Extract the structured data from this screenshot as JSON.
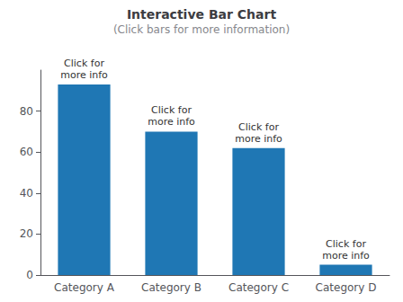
{
  "chart_data": {
    "type": "bar",
    "title": "Interactive Bar Chart",
    "subtitle": "(Click bars for more information)",
    "categories": [
      "Category A",
      "Category B",
      "Category C",
      "Category D"
    ],
    "values": [
      93,
      70,
      62,
      5
    ],
    "color": "#1f77b4",
    "annotations": [
      "Click for\nmore info",
      "Click for\nmore info",
      "Click for\nmore info",
      "Click for\nmore info"
    ],
    "ylim": [
      0,
      100
    ],
    "yticks": [
      0,
      20,
      40,
      60,
      80
    ],
    "grid": false
  }
}
